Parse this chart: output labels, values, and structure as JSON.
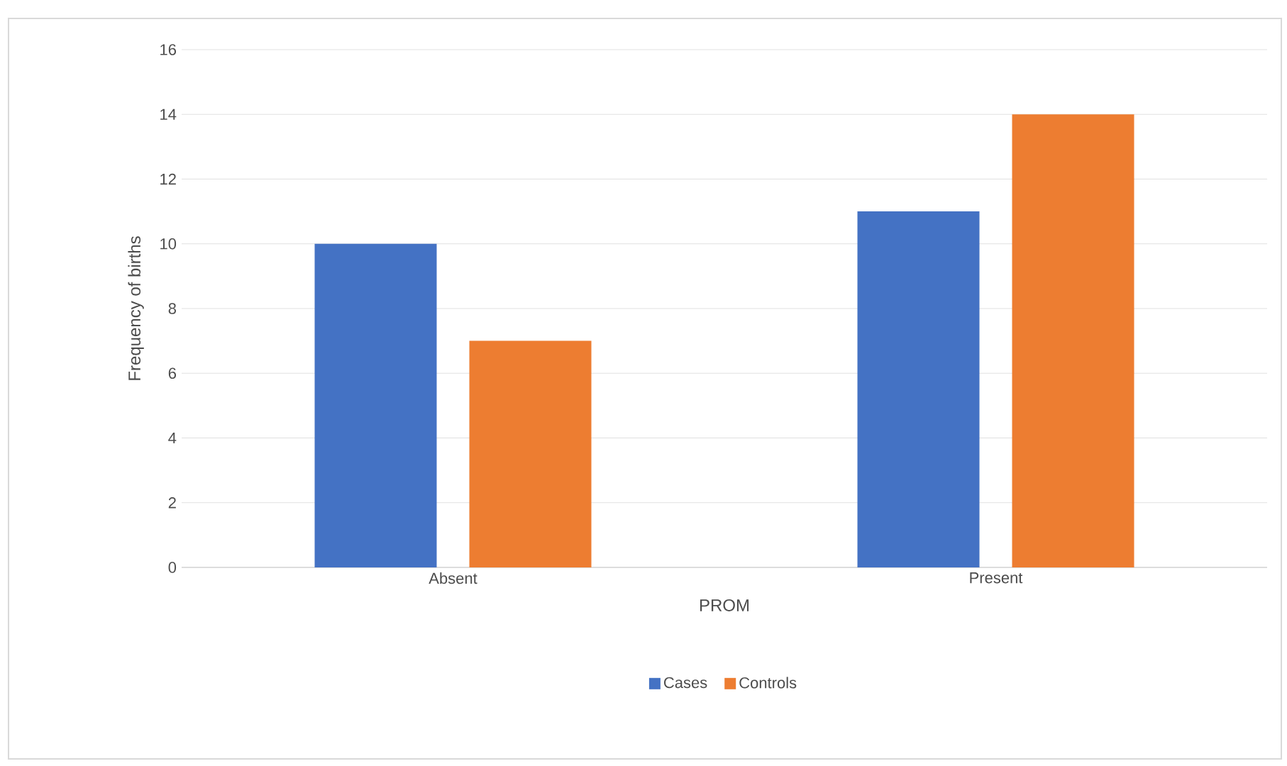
{
  "chart_data": {
    "type": "bar",
    "xlabel": "PROM",
    "ylabel": "Frequency of births",
    "categories": [
      "Absent",
      "Present"
    ],
    "series": [
      {
        "name": "Cases",
        "color": "#4472c4",
        "values": [
          10,
          11
        ]
      },
      {
        "name": "Controls",
        "color": "#ed7d31",
        "values": [
          7,
          14
        ]
      }
    ],
    "ylim": [
      0,
      16
    ],
    "yticks": [
      0,
      2,
      4,
      6,
      8,
      10,
      12,
      14,
      16
    ],
    "grid": "y",
    "legend": "bottom"
  }
}
